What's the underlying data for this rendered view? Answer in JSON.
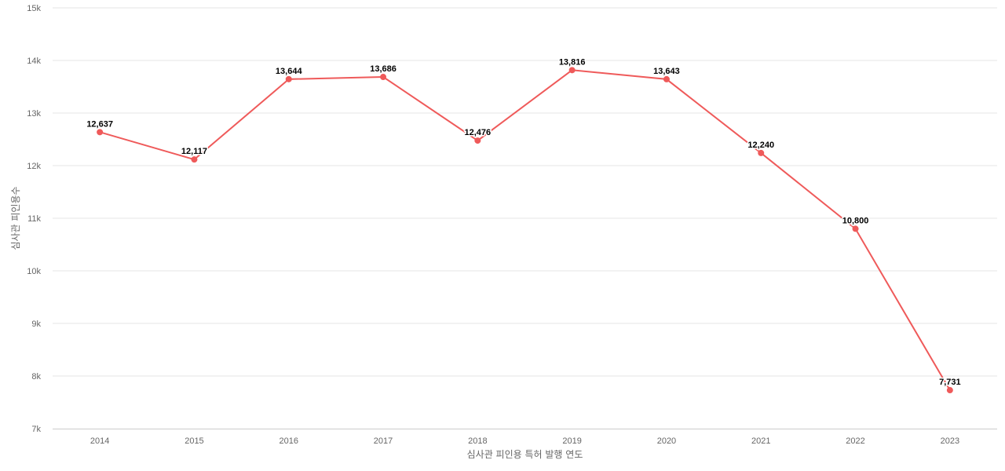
{
  "chart_data": {
    "type": "line",
    "title": "",
    "xlabel": "심사관 피인용 특허 발행 연도",
    "ylabel": "심사관 피인용수",
    "categories": [
      "2014",
      "2015",
      "2016",
      "2017",
      "2018",
      "2019",
      "2020",
      "2021",
      "2022",
      "2023"
    ],
    "values": [
      12637,
      12117,
      13644,
      13686,
      12476,
      13816,
      13643,
      12240,
      10800,
      7731
    ],
    "data_labels": [
      "12,637",
      "12,117",
      "13,644",
      "13,686",
      "12,476",
      "13,816",
      "13,643",
      "12,240",
      "10,800",
      "7,731"
    ],
    "ylim": [
      7000,
      15000
    ],
    "yticks": [
      7000,
      8000,
      9000,
      10000,
      11000,
      12000,
      13000,
      14000,
      15000
    ],
    "ytick_labels": [
      "7k",
      "8k",
      "9k",
      "10k",
      "11k",
      "12k",
      "13k",
      "14k",
      "15k"
    ],
    "grid": true,
    "legend": "none",
    "colors": {
      "series": "#ef5a5a",
      "grid": "#e6e6e6",
      "axis": "#cccccc"
    }
  }
}
